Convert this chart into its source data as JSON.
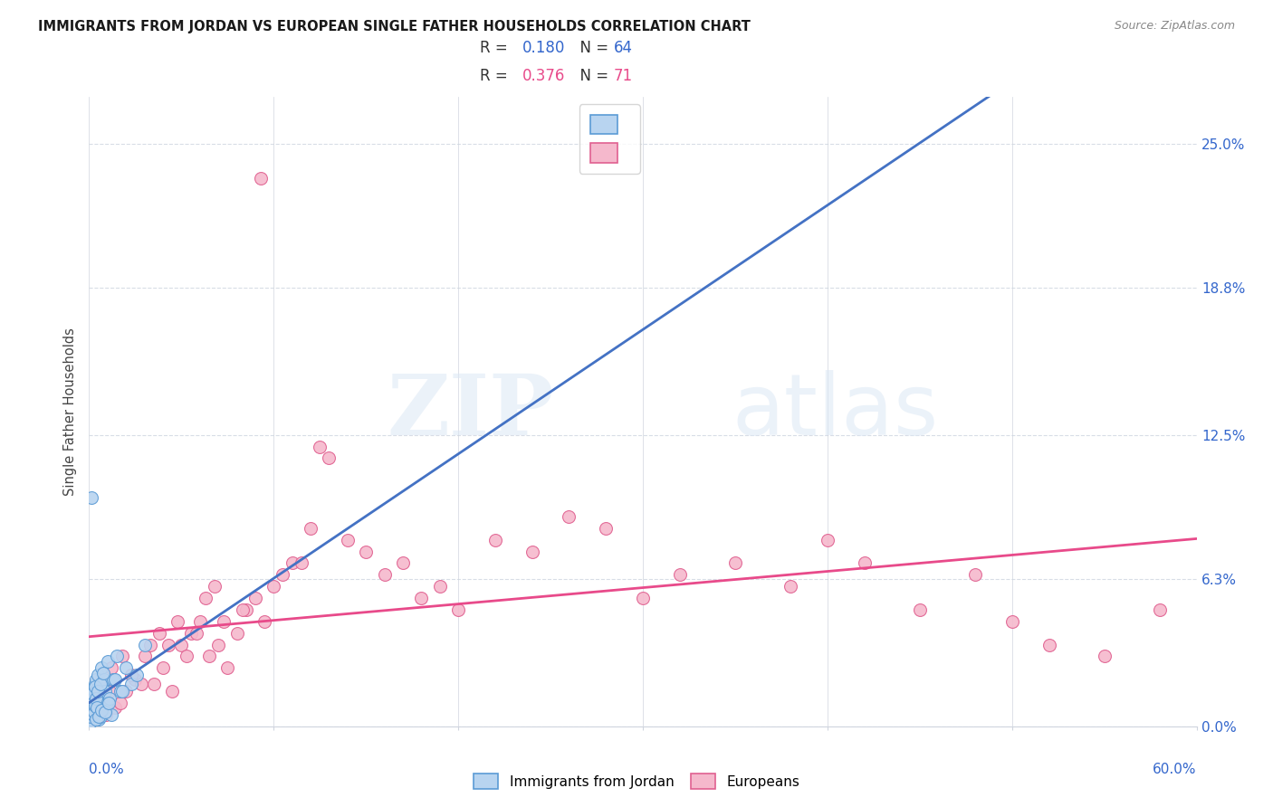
{
  "title": "IMMIGRANTS FROM JORDAN VS EUROPEAN SINGLE FATHER HOUSEHOLDS CORRELATION CHART",
  "source": "Source: ZipAtlas.com",
  "ylabel": "Single Father Households",
  "ytick_values": [
    0.0,
    6.3,
    12.5,
    18.8,
    25.0
  ],
  "xtick_values": [
    0.0,
    10.0,
    20.0,
    30.0,
    40.0,
    50.0,
    60.0
  ],
  "xlim": [
    0.0,
    60.0
  ],
  "ylim": [
    0.0,
    27.0
  ],
  "legend_r1": "R = 0.180",
  "legend_n1": "N = 64",
  "legend_r2": "R = 0.376",
  "legend_n2": "N = 71",
  "color_jordan_fill": "#b8d4f0",
  "color_jordan_edge": "#5b9bd5",
  "color_european_fill": "#f5b8cc",
  "color_european_edge": "#e06090",
  "color_jordan_line": "#4472c4",
  "color_european_line": "#e84a8a",
  "color_dashed_line": "#8ab4d8",
  "color_blue_label": "#3366cc",
  "color_pink_label": "#e84a8a",
  "jordan_x": [
    0.05,
    0.08,
    0.1,
    0.12,
    0.15,
    0.18,
    0.2,
    0.22,
    0.25,
    0.28,
    0.3,
    0.32,
    0.35,
    0.38,
    0.4,
    0.42,
    0.45,
    0.48,
    0.5,
    0.52,
    0.55,
    0.58,
    0.6,
    0.65,
    0.7,
    0.75,
    0.8,
    0.85,
    0.9,
    0.95,
    1.0,
    1.1,
    1.2,
    1.3,
    1.5,
    1.7,
    2.0,
    2.3,
    2.6,
    3.0,
    0.06,
    0.09,
    0.11,
    0.14,
    0.16,
    0.19,
    0.21,
    0.24,
    0.27,
    0.31,
    0.33,
    0.36,
    0.39,
    0.44,
    0.47,
    0.53,
    0.62,
    0.68,
    0.78,
    0.88,
    1.05,
    1.4,
    1.8,
    0.15
  ],
  "jordan_y": [
    0.3,
    0.5,
    0.8,
    0.4,
    1.0,
    0.6,
    1.2,
    0.9,
    1.5,
    0.7,
    1.8,
    1.1,
    2.0,
    1.4,
    0.5,
    1.6,
    0.8,
    2.2,
    1.0,
    0.3,
    0.6,
    1.3,
    0.4,
    2.5,
    1.8,
    0.9,
    2.0,
    1.5,
    0.7,
    1.0,
    2.8,
    1.2,
    0.5,
    2.0,
    3.0,
    1.5,
    2.5,
    1.8,
    2.2,
    3.5,
    0.2,
    0.4,
    0.7,
    1.1,
    0.8,
    1.4,
    0.5,
    1.0,
    0.6,
    1.7,
    0.9,
    0.3,
    1.2,
    0.8,
    1.5,
    0.4,
    1.8,
    0.7,
    2.3,
    0.6,
    1.0,
    2.0,
    1.5,
    9.8
  ],
  "european_x": [
    0.1,
    0.2,
    0.35,
    0.5,
    0.7,
    0.9,
    1.1,
    1.4,
    1.7,
    2.0,
    2.5,
    3.0,
    3.5,
    4.0,
    4.5,
    5.0,
    5.5,
    6.0,
    6.5,
    7.0,
    7.5,
    8.0,
    8.5,
    9.0,
    9.5,
    10.0,
    11.0,
    12.0,
    13.0,
    14.0,
    15.0,
    16.0,
    17.0,
    18.0,
    19.0,
    20.0,
    22.0,
    24.0,
    26.0,
    28.0,
    30.0,
    32.0,
    35.0,
    38.0,
    40.0,
    42.0,
    45.0,
    48.0,
    50.0,
    52.0,
    55.0,
    58.0,
    0.6,
    1.2,
    1.8,
    2.3,
    2.8,
    3.3,
    3.8,
    4.3,
    4.8,
    5.3,
    5.8,
    6.3,
    6.8,
    7.3,
    8.3,
    9.3,
    10.5,
    11.5,
    12.5
  ],
  "european_y": [
    0.3,
    0.5,
    0.8,
    1.0,
    1.2,
    0.5,
    1.5,
    0.8,
    1.0,
    1.5,
    2.0,
    3.0,
    1.8,
    2.5,
    1.5,
    3.5,
    4.0,
    4.5,
    3.0,
    3.5,
    2.5,
    4.0,
    5.0,
    5.5,
    4.5,
    6.0,
    7.0,
    8.5,
    11.5,
    8.0,
    7.5,
    6.5,
    7.0,
    5.5,
    6.0,
    5.0,
    8.0,
    7.5,
    9.0,
    8.5,
    5.5,
    6.5,
    7.0,
    6.0,
    8.0,
    7.0,
    5.0,
    6.5,
    4.5,
    3.5,
    3.0,
    5.0,
    2.0,
    2.5,
    3.0,
    2.2,
    1.8,
    3.5,
    4.0,
    3.5,
    4.5,
    3.0,
    4.0,
    5.5,
    6.0,
    4.5,
    5.0,
    23.5,
    6.5,
    7.0,
    12.0
  ],
  "watermark_zip": "ZIP",
  "watermark_atlas": "atlas",
  "background_color": "#ffffff",
  "grid_color": "#d8dde6",
  "spine_color": "#d0d5de"
}
